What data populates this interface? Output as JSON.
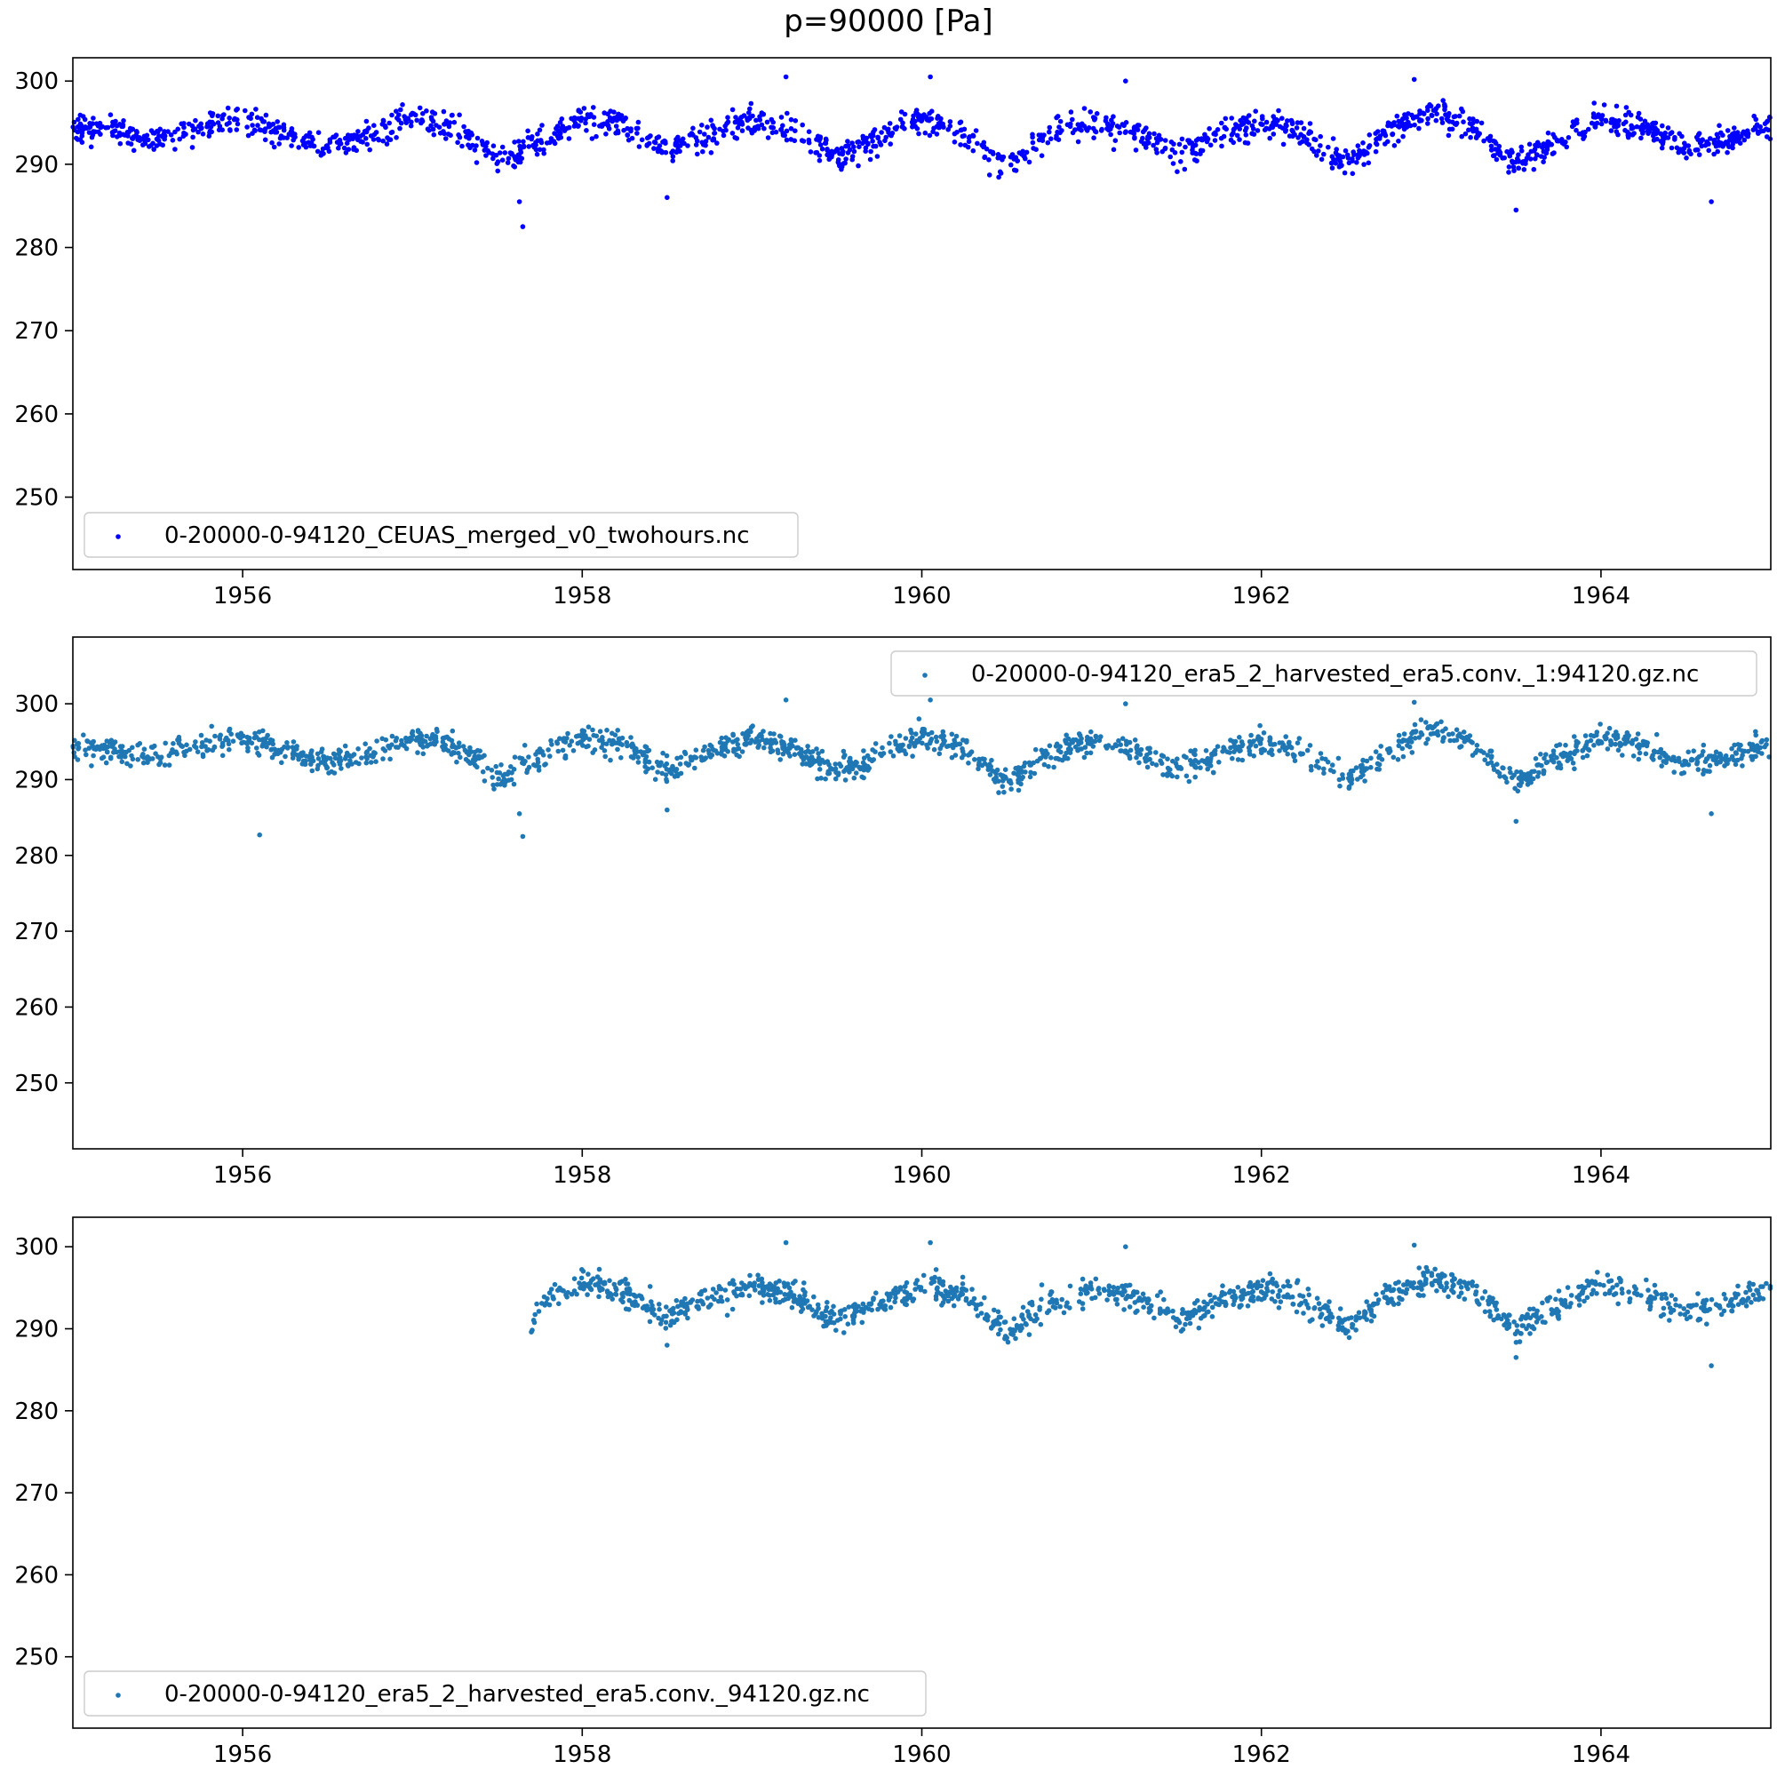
{
  "figure": {
    "title": "p=90000 [Pa]"
  },
  "chart_data": [
    {
      "type": "scatter",
      "title": "",
      "xlabel": "",
      "ylabel": "",
      "xlim": [
        1955.0,
        1965.0
      ],
      "ylim": [
        241.3,
        302.8
      ],
      "xticks": [
        "1956",
        "1958",
        "1960",
        "1962",
        "1964"
      ],
      "yticks": [
        "250",
        "260",
        "270",
        "280",
        "290",
        "300"
      ],
      "legend": {
        "placement": "lower-left",
        "entries": [
          "0-20000-0-94120_CEUAS_merged_v0_twohours.nc"
        ]
      },
      "series": [
        {
          "name": "0-20000-0-94120_CEUAS_merged_v0_twohours.nc",
          "color": "#0000ff",
          "x": [
            1955.0,
            1955.25,
            1955.5,
            1955.75,
            1956.0,
            1956.25,
            1956.5,
            1956.75,
            1957.0,
            1957.25,
            1957.5,
            1957.75,
            1958.0,
            1958.25,
            1958.5,
            1958.75,
            1959.0,
            1959.25,
            1959.5,
            1959.75,
            1960.0,
            1960.25,
            1960.5,
            1960.75,
            1961.0,
            1961.25,
            1961.5,
            1961.75,
            1962.0,
            1962.25,
            1962.5,
            1962.75,
            1963.0,
            1963.25,
            1963.5,
            1963.75,
            1964.0,
            1964.25,
            1964.5,
            1964.75,
            1965.0
          ],
          "y": [
            294.5,
            294.0,
            293.0,
            294.5,
            295.5,
            294.0,
            292.0,
            293.5,
            295.5,
            294.5,
            290.5,
            293.0,
            295.5,
            294.5,
            291.5,
            293.5,
            295.5,
            294.0,
            291.0,
            293.0,
            295.5,
            294.0,
            289.5,
            293.5,
            295.0,
            294.0,
            291.0,
            293.5,
            295.0,
            293.5,
            290.0,
            294.0,
            296.5,
            294.5,
            290.0,
            293.0,
            295.5,
            294.5,
            292.0,
            293.0,
            295.0
          ],
          "outliers": [
            [
              1957.65,
              282.5
            ],
            [
              1957.63,
              285.5
            ],
            [
              1959.2,
              300.5
            ],
            [
              1960.05,
              300.5
            ],
            [
              1961.2,
              300.0
            ],
            [
              1962.9,
              300.2
            ],
            [
              1963.5,
              284.5
            ],
            [
              1964.65,
              285.5
            ],
            [
              1958.5,
              286.0
            ]
          ]
        }
      ]
    },
    {
      "type": "scatter",
      "title": "",
      "xlabel": "",
      "ylabel": "",
      "xlim": [
        1955.0,
        1965.0
      ],
      "ylim": [
        241.3,
        308.8
      ],
      "xticks": [
        "1956",
        "1958",
        "1960",
        "1962",
        "1964"
      ],
      "yticks": [
        "250",
        "260",
        "270",
        "280",
        "290",
        "300"
      ],
      "legend": {
        "placement": "top-right",
        "entries": [
          "0-20000-0-94120_era5_2_harvested_era5.conv._1:94120.gz.nc"
        ]
      },
      "series": [
        {
          "name": "0-20000-0-94120_era5_2_harvested_era5.conv._1:94120.gz.nc",
          "color": "#1f77b4",
          "x": [
            1955.0,
            1955.25,
            1955.5,
            1955.75,
            1956.0,
            1956.25,
            1956.5,
            1956.75,
            1957.0,
            1957.25,
            1957.5,
            1957.75,
            1958.0,
            1958.25,
            1958.5,
            1958.75,
            1959.0,
            1959.25,
            1959.5,
            1959.75,
            1960.0,
            1960.25,
            1960.5,
            1960.75,
            1961.0,
            1961.25,
            1961.5,
            1961.75,
            1962.0,
            1962.25,
            1962.5,
            1962.75,
            1963.0,
            1963.25,
            1963.5,
            1963.75,
            1964.0,
            1964.25,
            1964.5,
            1964.75,
            1965.0
          ],
          "y": [
            294.5,
            294.0,
            293.0,
            294.5,
            295.5,
            294.0,
            292.0,
            293.5,
            295.5,
            294.5,
            290.5,
            293.0,
            295.5,
            294.5,
            291.5,
            293.5,
            295.5,
            294.0,
            291.0,
            293.0,
            295.5,
            294.0,
            289.5,
            293.5,
            295.0,
            294.0,
            291.0,
            293.5,
            295.0,
            293.5,
            290.0,
            294.0,
            296.5,
            294.5,
            290.0,
            293.0,
            295.5,
            294.5,
            292.0,
            293.0,
            295.0
          ],
          "outliers": [
            [
              1956.1,
              282.7
            ],
            [
              1957.65,
              282.5
            ],
            [
              1957.63,
              285.5
            ],
            [
              1959.2,
              300.5
            ],
            [
              1960.05,
              300.5
            ],
            [
              1961.2,
              300.0
            ],
            [
              1962.9,
              300.2
            ],
            [
              1963.5,
              284.5
            ],
            [
              1964.65,
              285.5
            ],
            [
              1958.5,
              286.0
            ]
          ]
        }
      ]
    },
    {
      "type": "scatter",
      "title": "",
      "xlabel": "",
      "ylabel": "",
      "xlim": [
        1955.0,
        1965.0
      ],
      "ylim": [
        241.3,
        303.6
      ],
      "xticks": [
        "1956",
        "1958",
        "1960",
        "1962",
        "1964"
      ],
      "yticks": [
        "250",
        "260",
        "270",
        "280",
        "290",
        "300"
      ],
      "legend": {
        "placement": "lower-left",
        "entries": [
          "0-20000-0-94120_era5_2_harvested_era5.conv._94120.gz.nc"
        ]
      },
      "series": [
        {
          "name": "0-20000-0-94120_era5_2_harvested_era5.conv._94120.gz.nc",
          "color": "#1f77b4",
          "x": [
            1957.7,
            1957.75,
            1958.0,
            1958.25,
            1958.5,
            1958.75,
            1959.0,
            1959.25,
            1959.5,
            1959.75,
            1960.0,
            1960.25,
            1960.5,
            1960.75,
            1961.0,
            1961.25,
            1961.5,
            1961.75,
            1962.0,
            1962.25,
            1962.5,
            1962.75,
            1963.0,
            1963.25,
            1963.5,
            1963.75,
            1964.0,
            1964.25,
            1964.5,
            1964.75,
            1965.0
          ],
          "y": [
            289.5,
            293.5,
            295.5,
            294.5,
            291.5,
            293.5,
            295.5,
            294.0,
            291.0,
            293.0,
            295.5,
            294.0,
            289.5,
            293.5,
            295.0,
            294.0,
            291.0,
            293.5,
            295.0,
            293.5,
            290.0,
            294.0,
            296.5,
            294.5,
            290.0,
            293.0,
            295.5,
            294.5,
            292.0,
            293.0,
            295.0
          ],
          "outliers": [
            [
              1959.2,
              300.5
            ],
            [
              1960.05,
              300.5
            ],
            [
              1961.2,
              300.0
            ],
            [
              1962.9,
              300.2
            ],
            [
              1963.5,
              286.5
            ],
            [
              1964.65,
              285.5
            ],
            [
              1958.5,
              288.0
            ]
          ]
        }
      ]
    }
  ]
}
